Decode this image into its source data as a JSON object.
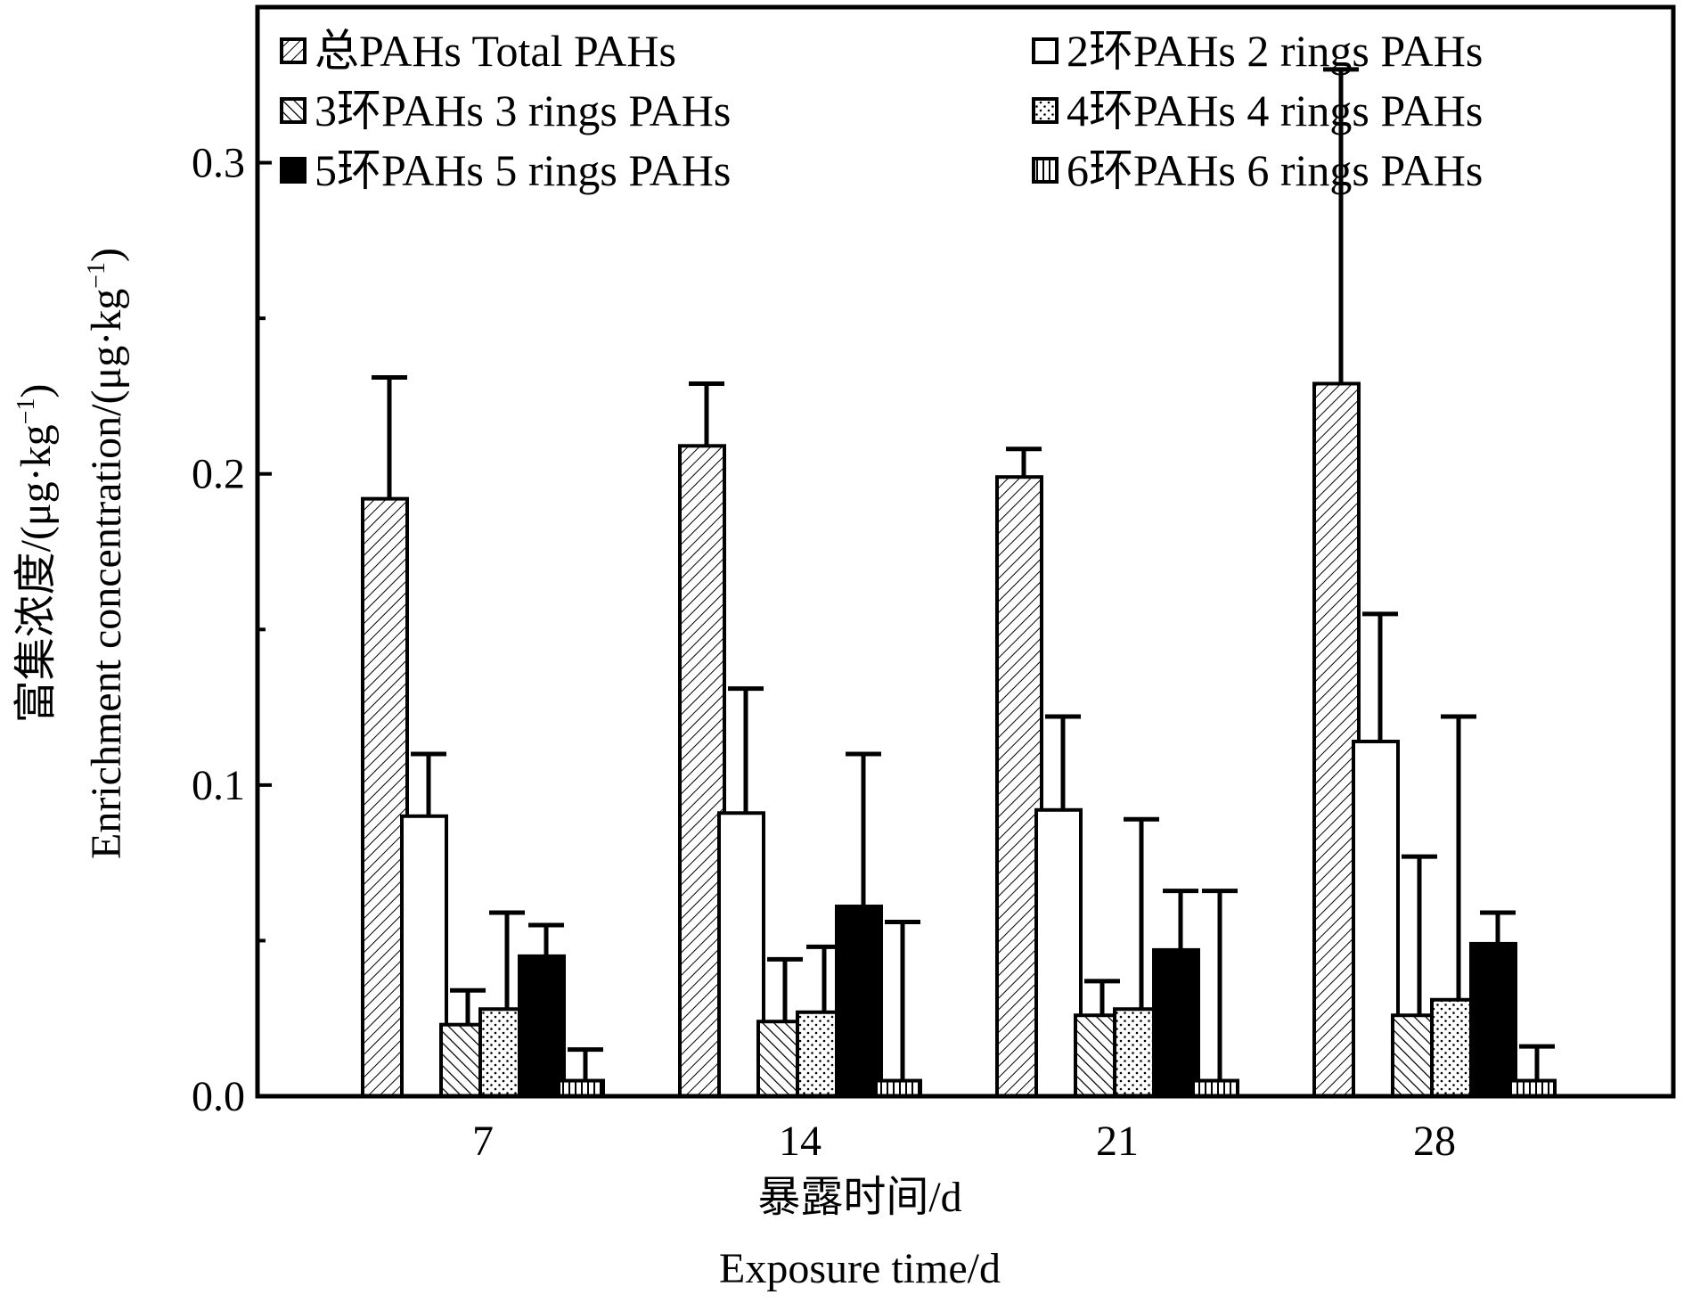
{
  "chart_data": {
    "type": "bar",
    "xlabel_cn": "暴露时间/d",
    "xlabel_en": "Exposure time/d",
    "ylabel_cn": "富集浓度/(μg·kg",
    "ylabel_en": "Enrichment concentration/(μg·kg",
    "ylabel_sup": "−1",
    "ylabel_close": ")",
    "ylim": [
      0,
      0.35
    ],
    "yticks": [
      0.0,
      0.1,
      0.2,
      0.3
    ],
    "ytick_labels": [
      "0.0",
      "0.1",
      "0.2",
      "0.3"
    ],
    "categories": [
      "7",
      "14",
      "21",
      "28"
    ],
    "legend_position": "top",
    "series": [
      {
        "name": "总PAHs Total PAHs",
        "pattern": "diag-fine",
        "values": [
          0.192,
          0.209,
          0.199,
          0.229
        ],
        "errors": [
          0.039,
          0.02,
          0.009,
          0.101
        ]
      },
      {
        "name": "2环PAHs 2 rings PAHs",
        "pattern": "empty",
        "values": [
          0.09,
          0.091,
          0.092,
          0.114
        ],
        "errors": [
          0.02,
          0.04,
          0.03,
          0.041
        ]
      },
      {
        "name": "3环PAHs 3 rings PAHs",
        "pattern": "diag-back",
        "values": [
          0.023,
          0.024,
          0.026,
          0.026
        ],
        "errors": [
          0.011,
          0.02,
          0.011,
          0.051
        ]
      },
      {
        "name": "4环PAHs 4 rings PAHs",
        "pattern": "dots",
        "values": [
          0.028,
          0.027,
          0.028,
          0.031
        ],
        "errors": [
          0.031,
          0.021,
          0.061,
          0.091
        ]
      },
      {
        "name": "5环PAHs 5 rings PAHs",
        "pattern": "solid",
        "values": [
          0.045,
          0.061,
          0.047,
          0.049
        ],
        "errors": [
          0.01,
          0.049,
          0.019,
          0.01
        ]
      },
      {
        "name": "6环PAHs 6 rings PAHs",
        "pattern": "vlines",
        "values": [
          0.005,
          0.005,
          0.005,
          0.005
        ],
        "errors": [
          0.01,
          0.051,
          0.061,
          0.011
        ]
      }
    ],
    "colors": {
      "stroke": "#000000",
      "fill_solid": "#000000",
      "background": "#ffffff"
    }
  }
}
